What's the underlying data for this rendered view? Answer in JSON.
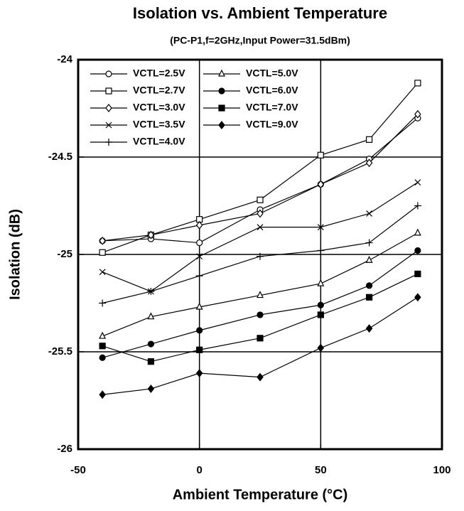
{
  "chart_data": {
    "type": "line",
    "title": "Isolation vs. Ambient Temperature",
    "subtitle": "(PC-P1,f=2GHz,Input Power=31.5dBm)",
    "x_label": "Ambient Temperature (°C)",
    "y_label": "Isolation (dB)",
    "x": [
      -40,
      -20,
      0,
      25,
      50,
      70,
      90
    ],
    "xlim": [
      -50,
      100
    ],
    "xticks": [
      -50,
      0,
      50,
      100
    ],
    "ylim": [
      -26,
      -24
    ],
    "yticks": [
      -26,
      -25.5,
      -25,
      -24.5,
      -24
    ],
    "grid": true,
    "legend": "upper left",
    "series": [
      {
        "name": "VCTL=2.5V",
        "color": "#000000",
        "marker": "circle-open",
        "values": [
          -24.93,
          -24.92,
          -24.94,
          -24.77,
          -24.64,
          -24.51,
          -24.3
        ]
      },
      {
        "name": "VCTL=2.7V",
        "color": "#000000",
        "marker": "square-open",
        "values": [
          -24.99,
          -24.9,
          -24.82,
          -24.72,
          -24.49,
          -24.41,
          -24.12
        ]
      },
      {
        "name": "VCTL=3.0V",
        "color": "#000000",
        "marker": "diamond-open",
        "values": [
          -24.93,
          -24.9,
          -24.85,
          -24.79,
          -24.64,
          -24.53,
          -24.28
        ]
      },
      {
        "name": "VCTL=3.5V",
        "color": "#000000",
        "marker": "x",
        "values": [
          -25.09,
          -25.19,
          -25.01,
          -24.86,
          -24.86,
          -24.79,
          -24.63
        ]
      },
      {
        "name": "VCTL=4.0V",
        "color": "#000000",
        "marker": "plus",
        "values": [
          -25.25,
          -25.19,
          -25.11,
          -25.01,
          -24.98,
          -24.94,
          -24.75
        ]
      },
      {
        "name": "VCTL=5.0V",
        "color": "#000000",
        "marker": "triangle-open",
        "values": [
          -25.42,
          -25.32,
          -25.27,
          -25.21,
          -25.15,
          -25.03,
          -24.89
        ]
      },
      {
        "name": "VCTL=6.0V",
        "color": "#000000",
        "marker": "circle",
        "values": [
          -25.53,
          -25.46,
          -25.39,
          -25.31,
          -25.26,
          -25.16,
          -24.98
        ]
      },
      {
        "name": "VCTL=7.0V",
        "color": "#000000",
        "marker": "square",
        "values": [
          -25.47,
          -25.55,
          -25.49,
          -25.43,
          -25.31,
          -25.22,
          -25.1
        ]
      },
      {
        "name": "VCTL=9.0V",
        "color": "#000000",
        "marker": "diamond",
        "values": [
          -25.72,
          -25.69,
          -25.61,
          -25.63,
          -25.48,
          -25.38,
          -25.22
        ]
      }
    ]
  }
}
